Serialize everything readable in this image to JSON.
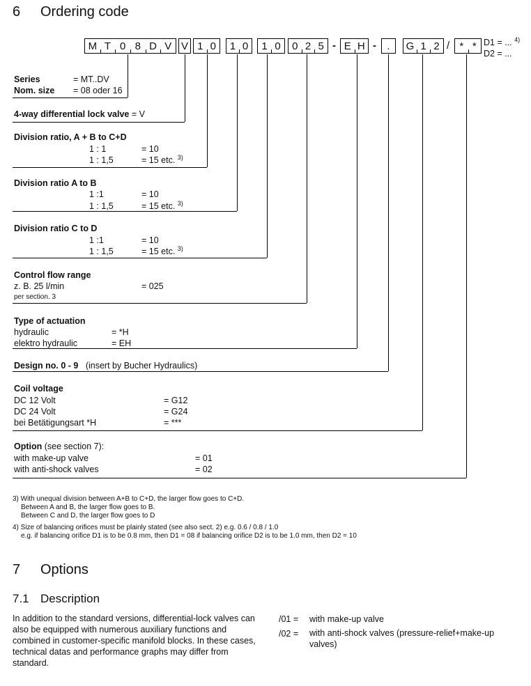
{
  "section6": {
    "number": "6",
    "title": "Ordering code"
  },
  "code": {
    "boxes": [
      [
        "M",
        "T",
        "0",
        "8",
        "D",
        "V"
      ],
      [
        "V"
      ],
      [
        "1",
        "0"
      ],
      [
        "1",
        "0"
      ],
      [
        "1",
        "0"
      ],
      [
        "0",
        "2",
        "5"
      ],
      [
        "E",
        "H"
      ],
      [
        "."
      ],
      [
        "G",
        "1",
        "2"
      ],
      [
        "*",
        "*"
      ]
    ],
    "sep1": "-",
    "sep2": "-",
    "sep3": "/",
    "d1": "D1 = ...",
    "d1_note": "4)",
    "d2": "D2 = ..."
  },
  "series": {
    "label": "Series",
    "value": "= MT..DV",
    "nom_label": "Nom. size",
    "nom_value": "= 08 oder 16"
  },
  "lockvalve": {
    "label": "4-way differential lock valve",
    "value": "= V"
  },
  "div_abcd": {
    "title": "Division ratio, A + B to C+D",
    "r1": "1 : 1",
    "v1": "= 10",
    "r2": "1 : 1,5",
    "v2": "= 15 etc.",
    "note": "3)"
  },
  "div_ab": {
    "title": "Division ratio A to B",
    "r1": "1 :1",
    "v1": "= 10",
    "r2": "1 : 1,5",
    "v2": "= 15 etc.",
    "note": "3)"
  },
  "div_cd": {
    "title": "Division ratio C to D",
    "r1": "1 :1",
    "v1": "= 10",
    "r2": "1 : 1,5",
    "v2": "= 15 etc.",
    "note": "3)"
  },
  "flow": {
    "title": "Control flow range",
    "r1": "z. B. 25 l/min",
    "v1": "= 025",
    "r2": "per section. 3"
  },
  "actuation": {
    "title": "Type of actuation",
    "r1": "hydraulic",
    "v1": "= *H",
    "r2": "elektro hydraulic",
    "v2": "= EH"
  },
  "design": {
    "title": "Design no. 0 - 9",
    "note": "(insert by Bucher Hydraulics)"
  },
  "coil": {
    "title": "Coil voltage",
    "r1": "DC 12 Volt",
    "v1": "= G12",
    "r2": "DC 24 Volt",
    "v2": "= G24",
    "r3": "bei Betätigungsart *H",
    "v3": "= ***"
  },
  "option": {
    "title": "Option",
    "title_rest": "(see section 7):",
    "r1": "with make-up valve",
    "v1": "= 01",
    "r2": "with anti-shock valves",
    "v2": "= 02"
  },
  "footnotes": {
    "n3a": "3) With unequal division between A+B to C+D, the larger flow goes to C+D.",
    "n3b": "Between A and B, the larger flow goes to B.",
    "n3c": "Between C and D, the larger flow goes to D",
    "n4a": "4) Size of balancing orifices must be plainly stated (see also sect. 2) e.g. 0.6 / 0.8 / 1.0",
    "n4b": "e.g. if balancing orifice D1 is to be 0.8 mm, then D1 = 08 if balancing orifice D2 is to be 1.0 mm, then D2 = 10"
  },
  "section7": {
    "number": "7",
    "title": "Options"
  },
  "section71": {
    "number": "7.1",
    "title": "Description",
    "text": "In addition to the standard versions, differential-lock valves can also be equipped with numerous auxiliary functions and combined in customer-specific manifold blocks. In these cases, technical datas and performance graphs may differ from standard.",
    "opt1_code": "/01 =",
    "opt1": "with make-up valve",
    "opt2_code": "/02 =",
    "opt2": "with anti-shock valves (pressure-relief+make-up valves)"
  }
}
